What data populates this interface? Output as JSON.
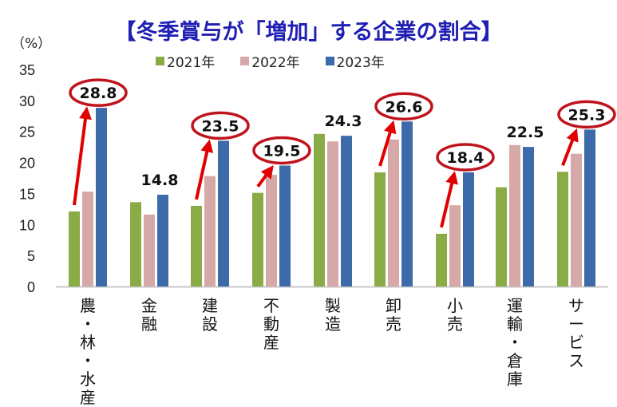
{
  "title": "【冬季賞与が「増加」する企業の割合】",
  "y_unit": "（%）",
  "legend": [
    {
      "label": "2021年",
      "color": "#8aac47"
    },
    {
      "label": "2022年",
      "color": "#d6a9a8"
    },
    {
      "label": "2023年",
      "color": "#3d6aa8"
    }
  ],
  "x_labels_vertical": [
    [
      "農",
      "・",
      "林",
      "・",
      "水",
      "産"
    ],
    [
      "金",
      "融"
    ],
    [
      "建",
      "設"
    ],
    [
      "不",
      "動",
      "産"
    ],
    [
      "製",
      "造"
    ],
    [
      "卸",
      "売"
    ],
    [
      "小",
      "売"
    ],
    [
      "運",
      "輸",
      "・",
      "倉",
      "庫"
    ],
    [
      "サ",
      "ー",
      "ビ",
      "ス"
    ]
  ],
  "chart_data": {
    "type": "bar",
    "title": "【冬季賞与が「増加」する企業の割合】",
    "xlabel": "",
    "ylabel": "（%）",
    "ylim": [
      0,
      35
    ],
    "yticks": [
      0,
      5,
      10,
      15,
      20,
      25,
      30,
      35
    ],
    "grid": false,
    "legend_position": "top",
    "categories": [
      "農・林・水産",
      "金融",
      "建設",
      "不動産",
      "製造",
      "卸売",
      "小売",
      "運輸・倉庫",
      "サービス"
    ],
    "series": [
      {
        "name": "2021年",
        "color": "#8aac47",
        "values": [
          12.1,
          13.6,
          13.0,
          15.1,
          24.6,
          18.4,
          8.5,
          16.0,
          18.5
        ]
      },
      {
        "name": "2022年",
        "color": "#d6a9a8",
        "values": [
          15.3,
          11.6,
          17.8,
          18.0,
          23.4,
          23.7,
          13.1,
          22.8,
          21.4
        ]
      },
      {
        "name": "2023年",
        "color": "#3d6aa8",
        "values": [
          28.8,
          14.8,
          23.5,
          19.5,
          24.3,
          26.6,
          18.4,
          22.5,
          25.3
        ]
      }
    ],
    "data_labels_2023": [
      "28.8",
      "14.8",
      "23.5",
      "19.5",
      "24.3",
      "26.6",
      "18.4",
      "22.5",
      "25.3"
    ],
    "annotations": {
      "circled_labels": [
        "農・林・水産",
        "建設",
        "不動産",
        "卸売",
        "小売",
        "サービス"
      ],
      "arrow_color": "#e00000",
      "circle_color": "#c0141c"
    }
  }
}
